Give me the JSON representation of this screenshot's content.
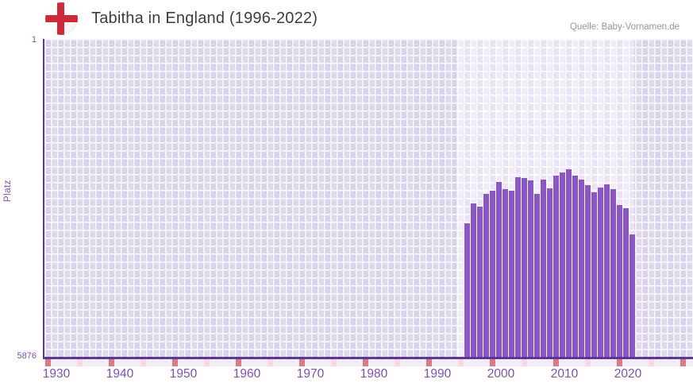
{
  "header": {
    "title": "Tabitha in England (1996-2022)",
    "source": "Quelle: Baby-Vornamen.de",
    "flag_icon": "england-flag-icon"
  },
  "chart_data": {
    "type": "bar",
    "title": "Tabitha in England (1996-2022)",
    "ylabel": "Platz",
    "y_axis": {
      "top_tick": "1",
      "bottom_tick": "5876",
      "min": 1,
      "max": 5876,
      "inverted": true
    },
    "x_axis": {
      "first_rendered_year": 1930,
      "last_rendered_year": 2031,
      "tick_labels": [
        "1930",
        "1940",
        "1950",
        "1960",
        "1970",
        "1980",
        "1990",
        "2000",
        "2010",
        "2020"
      ]
    },
    "highlight_range": {
      "from_year": 1995,
      "to_year": 2022
    },
    "years": [
      1996,
      1997,
      1998,
      1999,
      2000,
      2001,
      2002,
      2003,
      2004,
      2005,
      2006,
      2007,
      2008,
      2009,
      2010,
      2011,
      2012,
      2013,
      2014,
      2015,
      2016,
      2017,
      2018,
      2019,
      2020,
      2021,
      2022
    ],
    "platz": [
      3410,
      3040,
      3100,
      2865,
      2805,
      2640,
      2780,
      2800,
      2555,
      2570,
      2610,
      2865,
      2600,
      2760,
      2525,
      2470,
      2405,
      2525,
      2600,
      2710,
      2830,
      2750,
      2690,
      2775,
      3075,
      3135,
      3615
    ],
    "legend": "none",
    "grid": true,
    "colors": {
      "bar": "#8c57c4",
      "axis_line": "#5b3795",
      "axis_text": "#7d51b5",
      "x_tick_text": "#8153af",
      "plot_bg_dark": "#e0daee",
      "plot_bg_light": "#f1ecf9",
      "strip_base": "#f2edf8",
      "strip_half_decade": "#f6d9e1",
      "strip_decade": "#dd7a88",
      "title_text": "#3d3d3d",
      "source_text": "#979797",
      "flag_red": "#cd2b39"
    }
  }
}
